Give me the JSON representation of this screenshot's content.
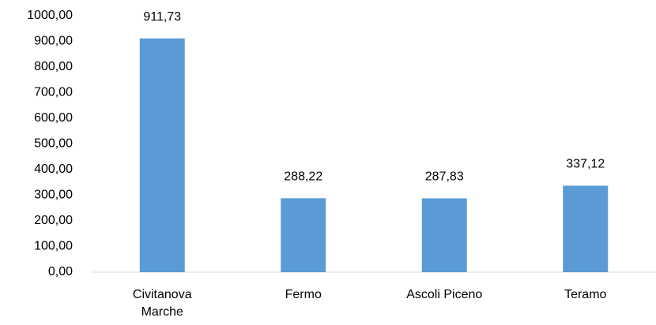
{
  "chart_data": {
    "type": "bar",
    "categories": [
      "Civitanova Marche",
      "Fermo",
      "Ascoli Piceno",
      "Teramo"
    ],
    "values": [
      911.73,
      288.22,
      287.83,
      337.12
    ],
    "value_labels": [
      "911,73",
      "288,22",
      "287,83",
      "337,12"
    ],
    "color": "#5b9bd5",
    "ylim": [
      0,
      1000
    ],
    "yticks": [
      {
        "value": 0,
        "label": "0,00"
      },
      {
        "value": 100,
        "label": "100,00"
      },
      {
        "value": 200,
        "label": "200,00"
      },
      {
        "value": 300,
        "label": "300,00"
      },
      {
        "value": 400,
        "label": "400,00"
      },
      {
        "value": 500,
        "label": "500,00"
      },
      {
        "value": 600,
        "label": "600,00"
      },
      {
        "value": 700,
        "label": "700,00"
      },
      {
        "value": 800,
        "label": "800,00"
      },
      {
        "value": 900,
        "label": "900,00"
      },
      {
        "value": 1000,
        "label": "1000,00"
      }
    ],
    "grid": false
  }
}
